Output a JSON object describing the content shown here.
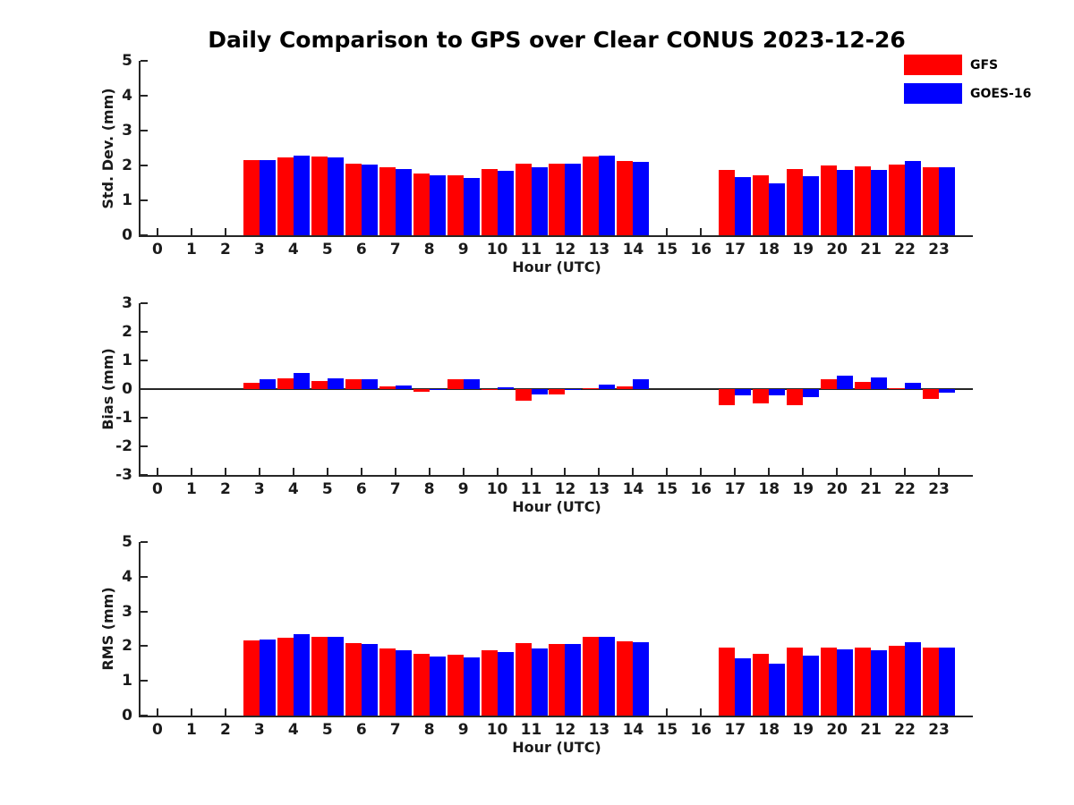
{
  "title": "Daily Comparison to GPS over Clear CONUS 2023-12-26",
  "legend": {
    "position": "top-right",
    "items": [
      {
        "label": "GFS",
        "color": "#ff0000"
      },
      {
        "label": "GOES-16",
        "color": "#0000ff"
      }
    ]
  },
  "chart_data": [
    {
      "type": "bar",
      "ylabel": "Std. Dev. (mm)",
      "xlabel": "Hour (UTC)",
      "ylim": [
        0,
        5
      ],
      "yticks": [
        0,
        1,
        2,
        3,
        4,
        5
      ],
      "grid": false,
      "categories": [
        0,
        1,
        2,
        3,
        4,
        5,
        6,
        7,
        8,
        9,
        10,
        11,
        12,
        13,
        14,
        15,
        16,
        17,
        18,
        19,
        20,
        21,
        22,
        23
      ],
      "series": [
        {
          "name": "GFS",
          "color": "#ff0000",
          "values": [
            null,
            null,
            null,
            2.15,
            2.22,
            2.25,
            2.05,
            1.95,
            1.77,
            1.72,
            1.9,
            2.04,
            2.06,
            2.26,
            2.14,
            null,
            null,
            1.88,
            1.72,
            1.91,
            1.99,
            1.97,
            2.02,
            1.96
          ]
        },
        {
          "name": "GOES-16",
          "color": "#0000ff",
          "values": [
            null,
            null,
            null,
            2.16,
            2.29,
            2.22,
            2.02,
            1.89,
            1.71,
            1.65,
            1.84,
            1.94,
            2.06,
            2.27,
            2.09,
            null,
            null,
            1.66,
            1.5,
            1.7,
            1.86,
            1.87,
            2.12,
            1.96
          ]
        }
      ]
    },
    {
      "type": "bar",
      "ylabel": "Bias (mm)",
      "xlabel": "Hour (UTC)",
      "ylim": [
        -3,
        3
      ],
      "yticks": [
        -3,
        -2,
        -1,
        0,
        1,
        2,
        3
      ],
      "zero_line": true,
      "grid": false,
      "categories": [
        0,
        1,
        2,
        3,
        4,
        5,
        6,
        7,
        8,
        9,
        10,
        11,
        12,
        13,
        14,
        15,
        16,
        17,
        18,
        19,
        20,
        21,
        22,
        23
      ],
      "series": [
        {
          "name": "GFS",
          "color": "#ff0000",
          "values": [
            null,
            null,
            null,
            0.23,
            0.36,
            0.29,
            0.33,
            0.1,
            -0.09,
            0.34,
            -0.03,
            -0.4,
            -0.18,
            0.02,
            0.08,
            null,
            null,
            -0.55,
            -0.5,
            -0.55,
            0.34,
            0.25,
            0.02,
            -0.33
          ]
        },
        {
          "name": "GOES-16",
          "color": "#0000ff",
          "values": [
            null,
            null,
            null,
            0.33,
            0.56,
            0.38,
            0.35,
            0.13,
            -0.04,
            0.35,
            0.06,
            -0.2,
            -0.03,
            0.15,
            0.34,
            null,
            null,
            -0.21,
            -0.21,
            -0.28,
            0.46,
            0.4,
            0.21,
            -0.14
          ]
        }
      ]
    },
    {
      "type": "bar",
      "ylabel": "RMS (mm)",
      "xlabel": "Hour (UTC)",
      "ylim": [
        0,
        5
      ],
      "yticks": [
        0,
        1,
        2,
        3,
        4,
        5
      ],
      "grid": false,
      "categories": [
        0,
        1,
        2,
        3,
        4,
        5,
        6,
        7,
        8,
        9,
        10,
        11,
        12,
        13,
        14,
        15,
        16,
        17,
        18,
        19,
        20,
        21,
        22,
        23
      ],
      "series": [
        {
          "name": "GFS",
          "color": "#ff0000",
          "values": [
            null,
            null,
            null,
            2.17,
            2.25,
            2.28,
            2.09,
            1.94,
            1.78,
            1.75,
            1.88,
            2.09,
            2.07,
            2.26,
            2.15,
            null,
            null,
            1.97,
            1.78,
            1.96,
            1.97,
            1.97,
            2.0,
            1.97
          ]
        },
        {
          "name": "GOES-16",
          "color": "#0000ff",
          "values": [
            null,
            null,
            null,
            2.19,
            2.34,
            2.27,
            2.06,
            1.88,
            1.7,
            1.67,
            1.82,
            1.94,
            2.06,
            2.28,
            2.12,
            null,
            null,
            1.65,
            1.49,
            1.72,
            1.9,
            1.89,
            2.12,
            1.96
          ]
        }
      ]
    }
  ]
}
